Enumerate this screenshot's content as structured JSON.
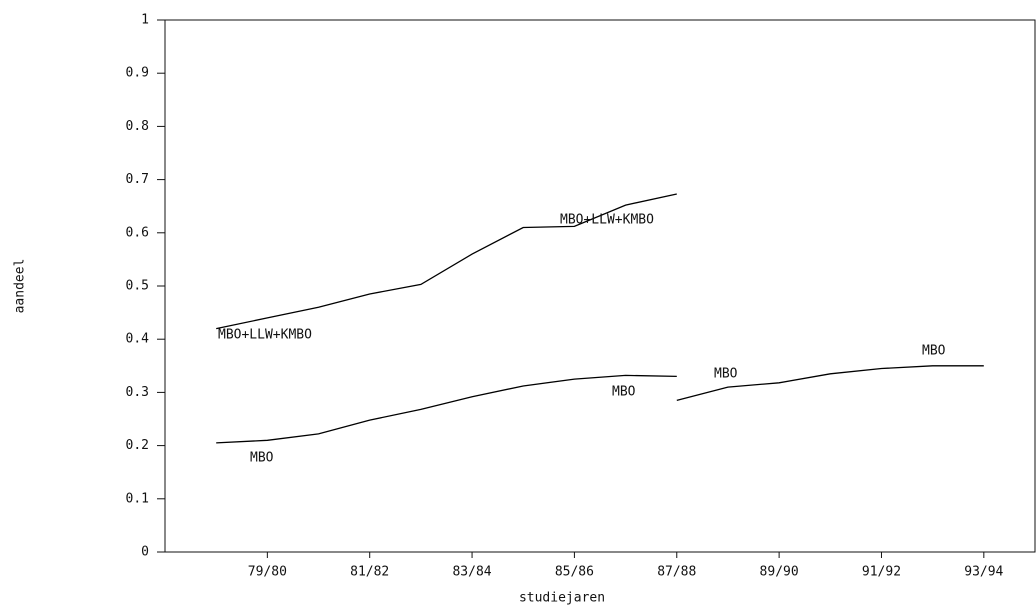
{
  "chart_data": {
    "type": "line",
    "x_label": "studiejaren",
    "y_label": "aandeel",
    "categories": [
      null,
      "79/80",
      null,
      "81/82",
      null,
      "83/84",
      null,
      "85/86",
      null,
      "87/88",
      null,
      "89/90",
      null,
      "91/92",
      null,
      "93/94"
    ],
    "series": [
      {
        "name": "MBO+LLW+KMBO",
        "color": "#000000",
        "values": [
          0.42,
          0.44,
          0.46,
          0.485,
          0.503,
          0.56,
          0.61,
          0.612,
          0.652,
          0.673,
          null,
          null,
          null,
          null,
          null,
          null
        ]
      },
      {
        "name": "MBO",
        "color": "#000000",
        "values": [
          0.205,
          0.21,
          0.222,
          0.248,
          0.268,
          0.292,
          0.312,
          0.325,
          0.332,
          0.33,
          null,
          null,
          null,
          null,
          null,
          null
        ]
      },
      {
        "name": "MBO",
        "color": "#000000",
        "values": [
          null,
          null,
          null,
          null,
          null,
          null,
          null,
          null,
          null,
          0.285,
          0.31,
          0.318,
          0.335,
          0.345,
          0.35,
          0.35
        ]
      }
    ],
    "ylim": [
      0,
      1
    ],
    "yticks": [
      0,
      0.1,
      0.2,
      0.3,
      0.4,
      0.5,
      0.6,
      0.7,
      0.8,
      0.9,
      1
    ]
  }
}
